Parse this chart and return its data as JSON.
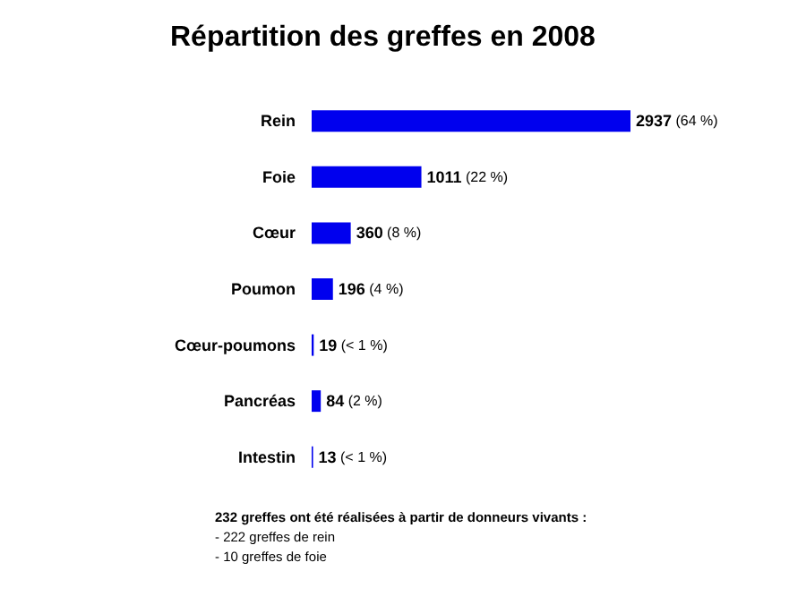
{
  "chart_data": {
    "type": "bar",
    "orientation": "horizontal",
    "title": "Répartition des greffes en 2008",
    "categories": [
      "Rein",
      "Foie",
      "Cœur",
      "Poumon",
      "Cœur-poumons",
      "Pancréas",
      "Intestin"
    ],
    "values": [
      2937,
      1011,
      360,
      196,
      19,
      84,
      13
    ],
    "color": "#0000ee",
    "value_labels": [
      "2937 (64 %)",
      "1011 (22 %)",
      "360 (8 %)",
      "196 (4 %)",
      "19 (< 1 %)",
      "84 (2 %)",
      "13 (< 1 %)"
    ],
    "annotations": [
      "232 greffes ont été réalisées à partir de donneurs vivants :",
      "- 222 greffes de rein",
      "- 10 greffes de foie"
    ]
  }
}
